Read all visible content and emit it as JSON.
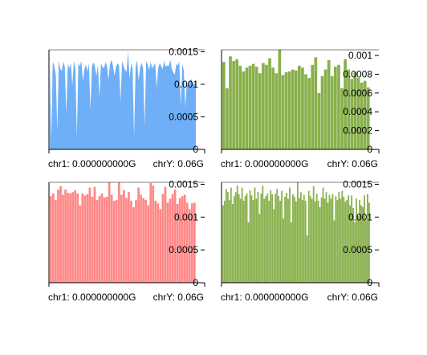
{
  "chart_data": [
    {
      "type": "area",
      "color": "#6eaff7",
      "x_tick_labels": [
        "chr1: 0.000000000G",
        "chrY: 0.06G"
      ],
      "y_ticks": [
        {
          "value": 0.0015,
          "label": "0.0015"
        },
        {
          "value": 0.001,
          "label": "0.001"
        },
        {
          "value": 0.0005,
          "label": "0.0005"
        },
        {
          "value": 0,
          "label": "0"
        }
      ],
      "ylim": [
        0,
        0.00153
      ],
      "values": [
        0.00132,
        0.00012,
        0.00135,
        0.00128,
        0.00115,
        0.00028,
        0.00136,
        0.00124,
        0.0012,
        0.00135,
        0.00127,
        0.00055,
        0.00131,
        0.00125,
        0.00132,
        0.00098,
        0.00136,
        0.00125,
        0.00018,
        0.00132,
        0.00128,
        0.00136,
        0.00105,
        0.00123,
        0.0013,
        0.0012,
        0.00132,
        0.0006,
        0.00128,
        0.00134,
        0.00127,
        0.00113,
        0.0013,
        0.0008,
        0.00132,
        0.00127,
        0.00125,
        0.00134,
        0.00128,
        0.00107,
        0.00131,
        0.00138,
        0.00128,
        0.00113,
        0.00127,
        0.00132,
        0.00129,
        0.00073,
        0.00136,
        0.00128,
        0.00122,
        0.00119,
        0.00151,
        0.00108,
        0.00132,
        0.00124,
        0.00018,
        0.00127,
        0.00137,
        0.00106,
        0.00126,
        0.00133,
        0.00125,
        0.00035,
        0.00136,
        0.00131,
        0.00122,
        0.00134,
        0.00125,
        0.00128,
        0.00133,
        0.00095,
        0.00125,
        0.00132,
        0.00128,
        0.00123,
        0.00136,
        0.00127,
        0.00129,
        0.00128,
        0.00138,
        0.00124,
        0.00118,
        0.00115,
        0.00131,
        0.00129,
        0.00135,
        0.00067,
        0.0013,
        0.00122,
        0.00065,
        0.00103,
        0.00096,
        0.00105,
        0.00108,
        0.00102,
        0.001,
        0.00108
      ]
    },
    {
      "type": "bar",
      "color": "#88b04b",
      "x_tick_labels": [
        "chr1: 0.000000000G",
        "chrY: 0.06G"
      ],
      "y_ticks": [
        {
          "value": 0.001,
          "label": "0.001"
        },
        {
          "value": 0.0008,
          "label": "0.0008"
        },
        {
          "value": 0.0006,
          "label": "0.0006"
        },
        {
          "value": 0.0004,
          "label": "0.0004"
        },
        {
          "value": 0.0002,
          "label": "0.0002"
        },
        {
          "value": 0,
          "label": "0"
        }
      ],
      "ylim": [
        0,
        0.00106
      ],
      "values": [
        0.00093,
        0.00065,
        0.00099,
        0.00094,
        0.00096,
        0.00089,
        0.00083,
        0.00087,
        0.00089,
        0.00091,
        0.00088,
        0.00081,
        0.00092,
        0.0009,
        0.00097,
        0.00087,
        0.00081,
        0.00106,
        0.00079,
        0.00082,
        0.00083,
        0.00085,
        0.00084,
        0.00089,
        0.00087,
        0.0008,
        0.00076,
        0.0009,
        0.00098,
        0.0006,
        0.00078,
        0.00085,
        0.00095,
        0.00078,
        0.00088,
        0.0009,
        0.00065,
        0.00096,
        0.00085,
        0.00075,
        0.00082,
        0.00076,
        0.00071,
        0.00073,
        0.00066
      ]
    },
    {
      "type": "bar",
      "color": "#ff8888",
      "x_tick_labels": [
        "chr1: 0.000000000G",
        "chrY: 0.06G"
      ],
      "y_ticks": [
        {
          "value": 0.0015,
          "label": "0.0015"
        },
        {
          "value": 0.001,
          "label": "0.001"
        },
        {
          "value": 0.0005,
          "label": "0.0005"
        },
        {
          "value": 0,
          "label": "0"
        }
      ],
      "ylim": [
        0,
        0.00153
      ],
      "values": [
        0.00132,
        0.00136,
        0.00126,
        0.00142,
        0.00147,
        0.00134,
        0.00142,
        0.00137,
        0.00136,
        0.00138,
        0.00141,
        0.00136,
        0.00118,
        0.00136,
        0.00133,
        0.00135,
        0.00145,
        0.00131,
        0.00146,
        0.00126,
        0.00132,
        0.00136,
        0.0013,
        0.00131,
        0.00153,
        0.00134,
        0.00125,
        0.00126,
        0.00153,
        0.00134,
        0.00141,
        0.00129,
        0.00138,
        0.00125,
        0.00115,
        0.00126,
        0.00145,
        0.00134,
        0.00129,
        0.00126,
        0.00118,
        0.00152,
        0.00148,
        0.00125,
        0.00121,
        0.00112,
        0.00135,
        0.00146,
        0.00122,
        0.00128,
        0.00135,
        0.00142,
        0.0012,
        0.00129,
        0.00132,
        0.00134,
        0.00122,
        0.00112,
        0.00121,
        0.00122
      ]
    },
    {
      "type": "bar",
      "color": "#88b04b",
      "x_tick_labels": [
        "chr1: 0.000000000G",
        "chrY: 0.06G"
      ],
      "y_ticks": [
        {
          "value": 0.0015,
          "label": "0.0015"
        },
        {
          "value": 0.001,
          "label": "0.001"
        },
        {
          "value": 0.0005,
          "label": "0.0005"
        },
        {
          "value": 0,
          "label": "0"
        }
      ],
      "ylim": [
        0,
        0.00153
      ],
      "values": [
        0.00118,
        0.00125,
        0.00143,
        0.00138,
        0.00126,
        0.00145,
        0.0012,
        0.00132,
        0.00138,
        0.00148,
        0.00135,
        0.00128,
        0.00145,
        0.00125,
        0.00132,
        0.00136,
        0.00092,
        0.00141,
        0.00133,
        0.00126,
        0.00145,
        0.00128,
        0.00138,
        0.00105,
        0.00136,
        0.00148,
        0.00128,
        0.00132,
        0.00136,
        0.00125,
        0.00141,
        0.00135,
        0.00112,
        0.00136,
        0.00143,
        0.00132,
        0.00125,
        0.0014,
        0.00098,
        0.00131,
        0.00137,
        0.00128,
        0.00145,
        0.00092,
        0.00135,
        0.00131,
        0.00124,
        0.00153,
        0.00129,
        0.00138,
        0.00126,
        0.00134,
        0.00125,
        0.00072,
        0.0014,
        0.00132,
        0.00128,
        0.00147,
        0.00124,
        0.00136,
        0.00125,
        0.00115,
        0.0013,
        0.00145,
        0.00128,
        0.00138,
        0.00122,
        0.00134,
        0.00128,
        0.00135,
        0.00095,
        0.00132,
        0.00126,
        0.00138,
        0.00128,
        0.0014,
        0.00131,
        0.00124,
        0.00126,
        0.00133,
        0.00118,
        0.00133,
        0.00114,
        0.00092,
        0.00128,
        0.00102,
        0.00126,
        0.00118,
        0.00115,
        0.00133,
        0.00095,
        0.00135,
        0.00122
      ]
    }
  ]
}
